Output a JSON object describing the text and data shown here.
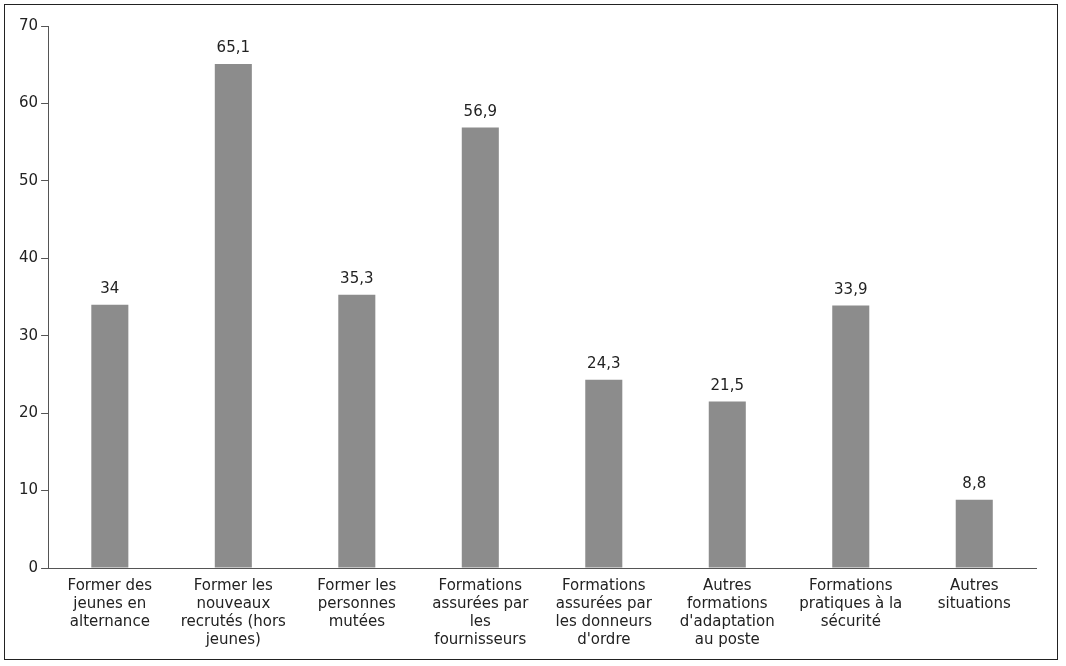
{
  "chart_data": {
    "type": "bar",
    "categories": [
      "Former des jeunes en alternance",
      "Former les nouveaux recrutés (hors jeunes)",
      "Former les personnes mutées",
      "Formations assurées par les fournisseurs",
      "Formations assurées par les donneurs d'ordre",
      "Autres formations d'adaptation au poste",
      "Formations pratiques à la sécurité",
      "Autres situations"
    ],
    "values": [
      34,
      65.1,
      35.3,
      56.9,
      24.3,
      21.5,
      33.9,
      8.8
    ],
    "value_labels": [
      "34",
      "65,1",
      "35,3",
      "56,9",
      "24,3",
      "21,5",
      "33,9",
      "8,8"
    ],
    "color": "#8c8c8c",
    "ylim": [
      0,
      70
    ],
    "yticks": [
      0,
      10,
      20,
      30,
      40,
      50,
      60,
      70
    ],
    "grid": false,
    "legend": false
  }
}
